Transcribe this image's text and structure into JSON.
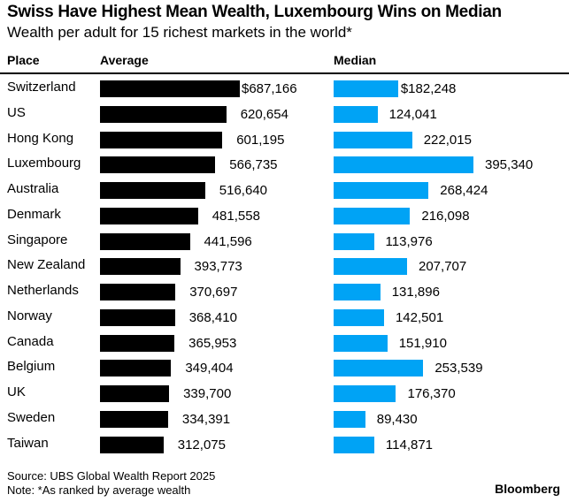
{
  "chart_data": {
    "type": "bar",
    "title": "Swiss Have Highest Mean Wealth, Luxembourg Wins on Median",
    "subtitle": "Wealth per adult for 15 richest markets in the world*",
    "column_headers": {
      "place": "Place",
      "average": "Average",
      "median": "Median"
    },
    "categories": [
      "Switzerland",
      "US",
      "Hong Kong",
      "Luxembourg",
      "Australia",
      "Denmark",
      "Singapore",
      "New Zealand",
      "Netherlands",
      "Norway",
      "Canada",
      "Belgium",
      "UK",
      "Sweden",
      "Taiwan"
    ],
    "series": [
      {
        "name": "Average",
        "color": "#000000",
        "values": [
          687166,
          620654,
          601195,
          566735,
          516640,
          481558,
          441596,
          393773,
          370697,
          368410,
          365953,
          349404,
          339700,
          334391,
          312075
        ],
        "labels": [
          "$687,166",
          "620,654",
          "601,195",
          "566,735",
          "516,640",
          "481,558",
          "441,596",
          "393,773",
          "370,697",
          "368,410",
          "365,953",
          "349,404",
          "339,700",
          "334,391",
          "312,075"
        ]
      },
      {
        "name": "Median",
        "color": "#00a3f5",
        "values": [
          182248,
          124041,
          222015,
          395340,
          268424,
          216098,
          113976,
          207707,
          131896,
          142501,
          151910,
          253539,
          176370,
          89430,
          114871
        ],
        "labels": [
          "$182,248",
          "124,041",
          "222,015",
          "395,340",
          "268,424",
          "216,098",
          "113,976",
          "207,707",
          "131,896",
          "142,501",
          "151,910",
          "253,539",
          "176,370",
          "89,430",
          "114,871"
        ]
      }
    ],
    "xlabel": "",
    "ylabel": "",
    "grid": false,
    "legend": "none"
  },
  "footer": {
    "source": "Source: UBS Global Wealth Report 2025",
    "note": "Note: *As ranked by average wealth",
    "brand": "Bloomberg"
  }
}
